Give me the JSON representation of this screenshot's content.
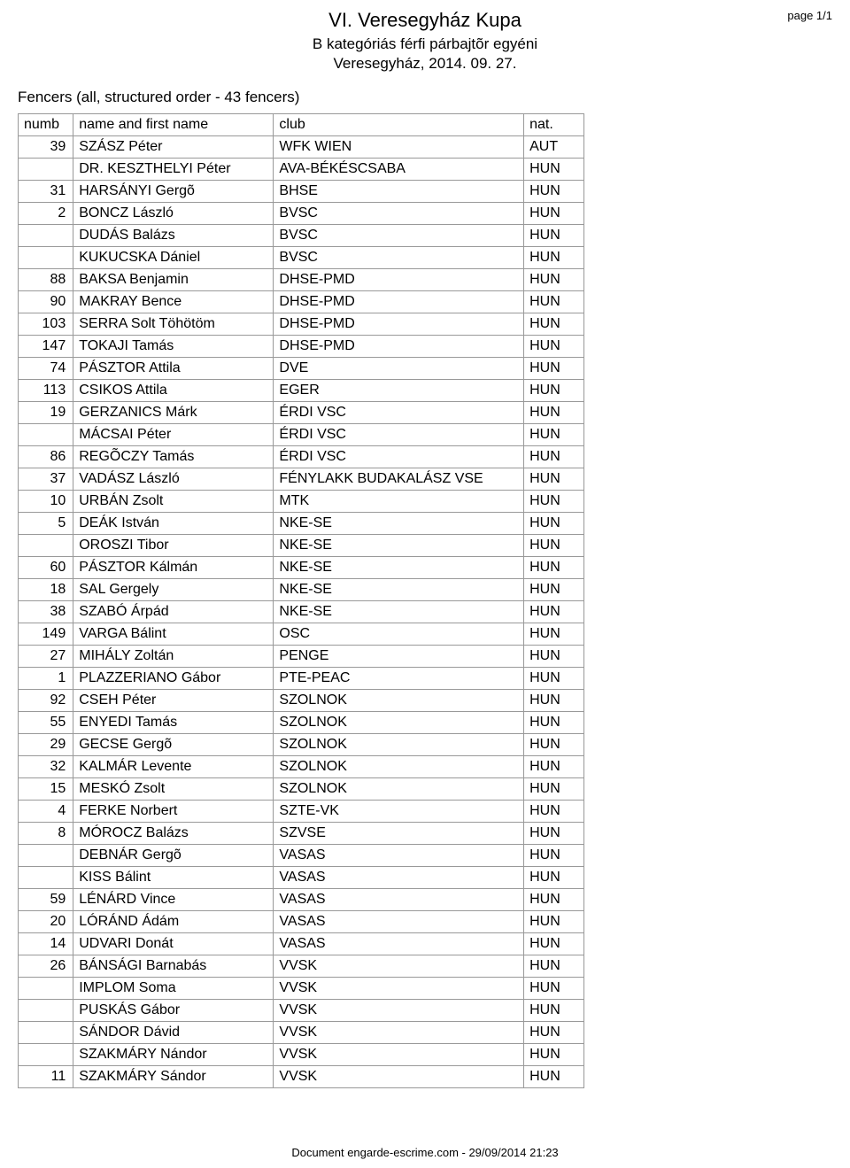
{
  "page_indicator": "page 1/1",
  "header": {
    "title": "VI. Veresegyház Kupa",
    "subtitle": "B kategóriás férfi párbajtõr egyéni",
    "date": "Veresegyház, 2014. 09. 27."
  },
  "section_title": "Fencers (all, structured order - 43 fencers)",
  "columns": {
    "numb": "numb",
    "name": "name and first name",
    "club": "club",
    "nat": "nat."
  },
  "rows": [
    {
      "numb": "39",
      "name": "SZÁSZ Péter",
      "club": "WFK WIEN",
      "nat": "AUT"
    },
    {
      "numb": "",
      "name": "DR. KESZTHELYI Péter",
      "club": "AVA-BÉKÉSCSABA",
      "nat": "HUN"
    },
    {
      "numb": "31",
      "name": "HARSÁNYI Gergõ",
      "club": "BHSE",
      "nat": "HUN"
    },
    {
      "numb": "2",
      "name": "BONCZ László",
      "club": "BVSC",
      "nat": "HUN"
    },
    {
      "numb": "",
      "name": "DUDÁS Balázs",
      "club": "BVSC",
      "nat": "HUN"
    },
    {
      "numb": "",
      "name": "KUKUCSKA Dániel",
      "club": "BVSC",
      "nat": "HUN"
    },
    {
      "numb": "88",
      "name": "BAKSA Benjamin",
      "club": "DHSE-PMD",
      "nat": "HUN"
    },
    {
      "numb": "90",
      "name": "MAKRAY Bence",
      "club": "DHSE-PMD",
      "nat": "HUN"
    },
    {
      "numb": "103",
      "name": "SERRA Solt Töhötöm",
      "club": "DHSE-PMD",
      "nat": "HUN"
    },
    {
      "numb": "147",
      "name": "TOKAJI Tamás",
      "club": "DHSE-PMD",
      "nat": "HUN"
    },
    {
      "numb": "74",
      "name": "PÁSZTOR Attila",
      "club": "DVE",
      "nat": "HUN"
    },
    {
      "numb": "113",
      "name": "CSIKOS Attila",
      "club": "EGER",
      "nat": "HUN"
    },
    {
      "numb": "19",
      "name": "GERZANICS Márk",
      "club": "ÉRDI VSC",
      "nat": "HUN"
    },
    {
      "numb": "",
      "name": "MÁCSAI Péter",
      "club": "ÉRDI VSC",
      "nat": "HUN"
    },
    {
      "numb": "86",
      "name": "REGÕCZY Tamás",
      "club": "ÉRDI VSC",
      "nat": "HUN"
    },
    {
      "numb": "37",
      "name": "VADÁSZ László",
      "club": "FÉNYLAKK BUDAKALÁSZ VSE",
      "nat": "HUN"
    },
    {
      "numb": "10",
      "name": "URBÁN Zsolt",
      "club": "MTK",
      "nat": "HUN"
    },
    {
      "numb": "5",
      "name": "DEÁK István",
      "club": "NKE-SE",
      "nat": "HUN"
    },
    {
      "numb": "",
      "name": "OROSZI Tibor",
      "club": "NKE-SE",
      "nat": "HUN"
    },
    {
      "numb": "60",
      "name": "PÁSZTOR Kálmán",
      "club": "NKE-SE",
      "nat": "HUN"
    },
    {
      "numb": "18",
      "name": "SAL Gergely",
      "club": "NKE-SE",
      "nat": "HUN"
    },
    {
      "numb": "38",
      "name": "SZABÓ Árpád",
      "club": "NKE-SE",
      "nat": "HUN"
    },
    {
      "numb": "149",
      "name": "VARGA Bálint",
      "club": "OSC",
      "nat": "HUN"
    },
    {
      "numb": "27",
      "name": "MIHÁLY Zoltán",
      "club": "PENGE",
      "nat": "HUN"
    },
    {
      "numb": "1",
      "name": "PLAZZERIANO Gábor",
      "club": "PTE-PEAC",
      "nat": "HUN"
    },
    {
      "numb": "92",
      "name": "CSEH Péter",
      "club": "SZOLNOK",
      "nat": "HUN"
    },
    {
      "numb": "55",
      "name": "ENYEDI Tamás",
      "club": "SZOLNOK",
      "nat": "HUN"
    },
    {
      "numb": "29",
      "name": "GECSE Gergõ",
      "club": "SZOLNOK",
      "nat": "HUN"
    },
    {
      "numb": "32",
      "name": "KALMÁR Levente",
      "club": "SZOLNOK",
      "nat": "HUN"
    },
    {
      "numb": "15",
      "name": "MESKÓ Zsolt",
      "club": "SZOLNOK",
      "nat": "HUN"
    },
    {
      "numb": "4",
      "name": "FERKE Norbert",
      "club": "SZTE-VK",
      "nat": "HUN"
    },
    {
      "numb": "8",
      "name": "MÓROCZ Balázs",
      "club": "SZVSE",
      "nat": "HUN"
    },
    {
      "numb": "",
      "name": "DEBNÁR Gergõ",
      "club": "VASAS",
      "nat": "HUN"
    },
    {
      "numb": "",
      "name": "KISS Bálint",
      "club": "VASAS",
      "nat": "HUN"
    },
    {
      "numb": "59",
      "name": "LÉNÁRD Vince",
      "club": "VASAS",
      "nat": "HUN"
    },
    {
      "numb": "20",
      "name": "LÓRÁND Ádám",
      "club": "VASAS",
      "nat": "HUN"
    },
    {
      "numb": "14",
      "name": "UDVARI Donát",
      "club": "VASAS",
      "nat": "HUN"
    },
    {
      "numb": "26",
      "name": "BÁNSÁGI Barnabás",
      "club": "VVSK",
      "nat": "HUN"
    },
    {
      "numb": "",
      "name": "IMPLOM Soma",
      "club": "VVSK",
      "nat": "HUN"
    },
    {
      "numb": "",
      "name": "PUSKÁS Gábor",
      "club": "VVSK",
      "nat": "HUN"
    },
    {
      "numb": "",
      "name": "SÁNDOR Dávid",
      "club": "VVSK",
      "nat": "HUN"
    },
    {
      "numb": "",
      "name": "SZAKMÁRY Nándor",
      "club": "VVSK",
      "nat": "HUN"
    },
    {
      "numb": "11",
      "name": "SZAKMÁRY Sándor",
      "club": "VVSK",
      "nat": "HUN"
    }
  ],
  "footer": "Document engarde-escrime.com  - 29/09/2014 21:23",
  "style": {
    "background_color": "#ffffff",
    "text_color": "#000000",
    "border_color": "#999999",
    "title_fontsize": 22,
    "subtitle_fontsize": 17,
    "body_fontsize": 16,
    "small_fontsize": 13
  }
}
